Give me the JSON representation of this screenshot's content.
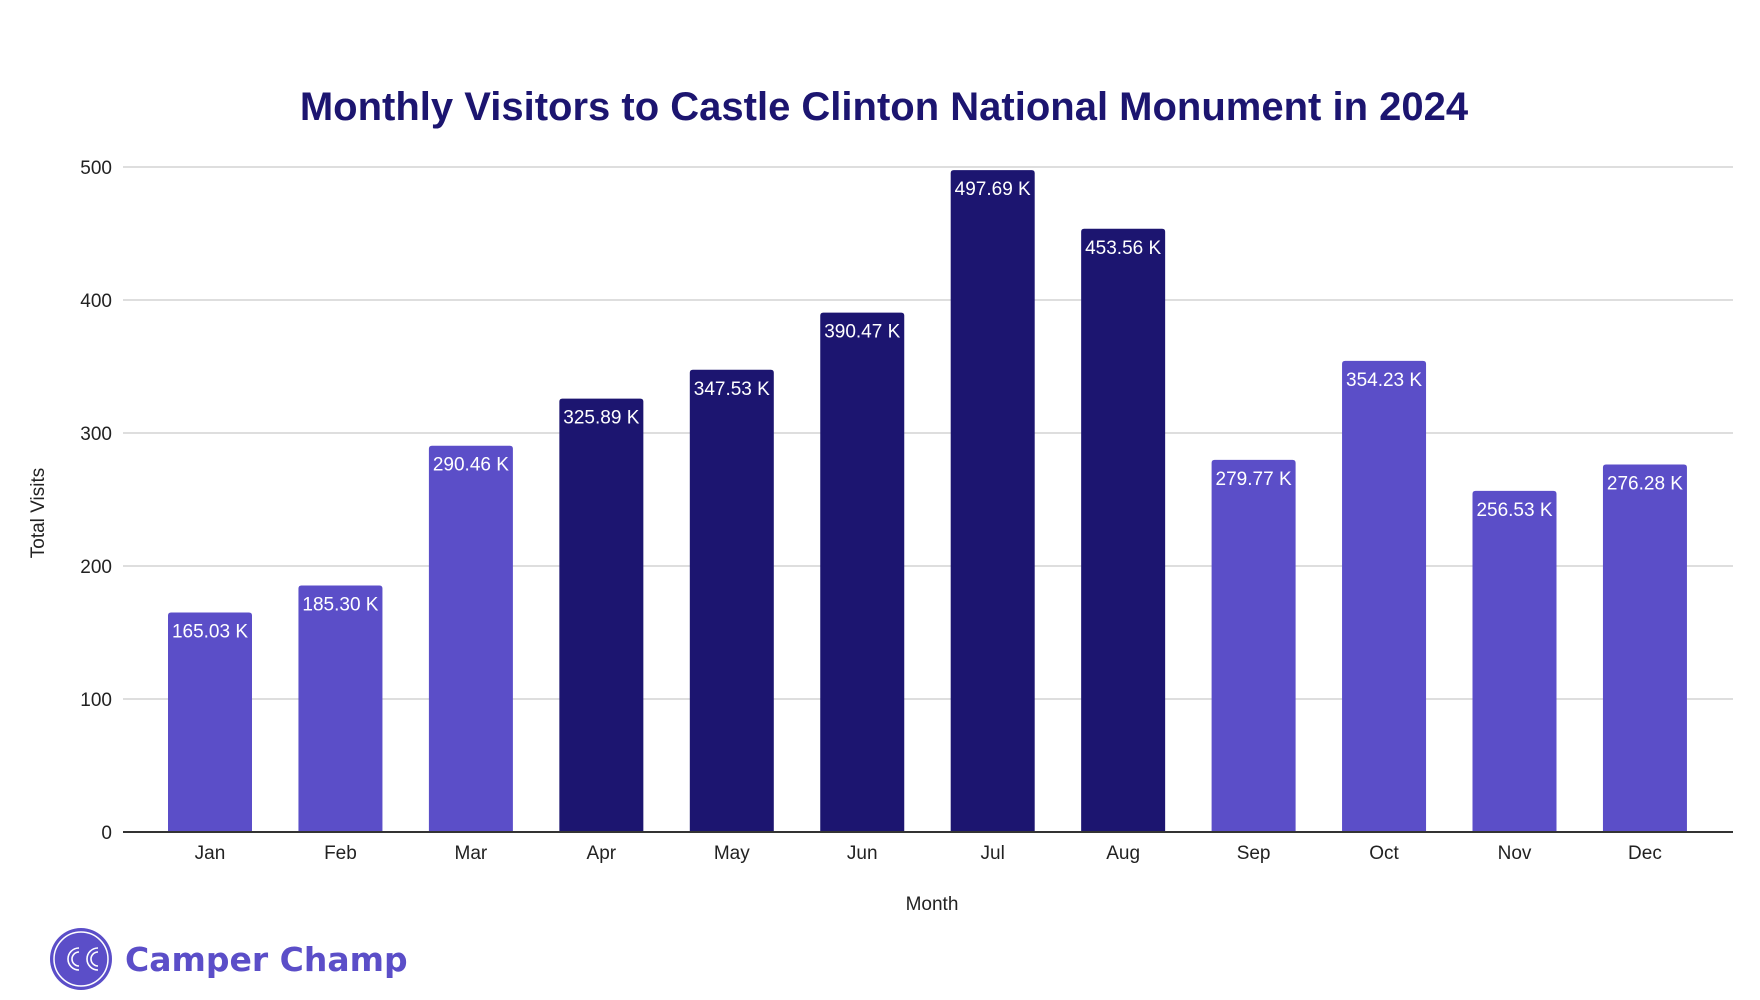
{
  "chart_data": {
    "type": "bar",
    "title": "Monthly Visitors to Castle Clinton National Monument in 2024",
    "xlabel": "Month",
    "ylabel": "Total Visits",
    "ylim": [
      0,
      500
    ],
    "yticks": [
      0,
      100,
      200,
      300,
      400,
      500
    ],
    "ytick_labels": [
      "0",
      "100",
      "200",
      "300",
      "400",
      "500"
    ],
    "grid": true,
    "legend": "none",
    "categories": [
      "Jan",
      "Feb",
      "Mar",
      "Apr",
      "May",
      "Jun",
      "Jul",
      "Aug",
      "Sep",
      "Oct",
      "Nov",
      "Dec"
    ],
    "values": [
      165.03,
      185.3,
      290.46,
      325.89,
      347.53,
      390.47,
      497.69,
      453.56,
      279.77,
      354.23,
      256.53,
      276.28
    ],
    "data_labels": [
      "165.03 K",
      "185.30 K",
      "290.46 K",
      "325.89 K",
      "347.53 K",
      "390.47 K",
      "497.69 K",
      "453.56 K",
      "279.77 K",
      "354.23 K",
      "256.53 K",
      "276.28 K"
    ],
    "highlight": [
      false,
      false,
      false,
      true,
      true,
      true,
      true,
      true,
      false,
      false,
      false,
      false
    ],
    "units": "thousands of visits"
  },
  "colors": {
    "title": "#1c1570",
    "bar_default": "#5b4ec8",
    "bar_highlight": "#1c1570",
    "gridline": "#d4d4d4",
    "axis": "#333333",
    "brand": "#5b4ec8"
  },
  "branding": {
    "logo_text": "CC",
    "name": "Camper Champ"
  }
}
